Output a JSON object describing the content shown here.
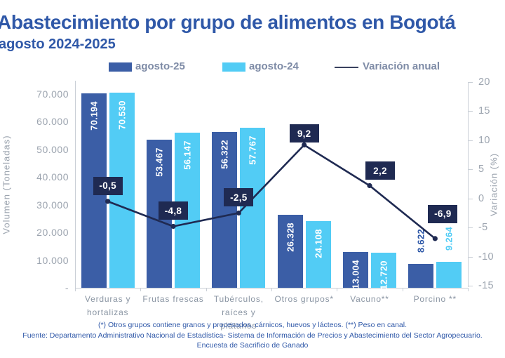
{
  "title": "Abastecimiento por grupo de alimentos en Bogotá",
  "subtitle": "agosto 2024-2025",
  "footnotes": {
    "line1": "(*) Otros grupos contiene granos y procesados, cárnicos, huevos y lácteos. (**) Peso en canal.",
    "line2": "Fuente: Departamento Administrativo Nacional de Estadística- Sistema de Información de Precios y Abastecimiento del Sector Agropecuario.",
    "line3": "Encuesta de  Sacrificio de Ganado"
  },
  "colors": {
    "title_blue": "#2F58A8",
    "bar_dark_blue": "#3B5EA6",
    "bar_light_blue": "#52CCF5",
    "navy": "#1F2A52",
    "axis_text_gray": "#9CA4AF",
    "category_text_gray": "#8A95A3",
    "legend_text": "#7E8BA6",
    "axis_line_gray": "#C9CFD6"
  },
  "chart_data": {
    "type": "bar",
    "title": "Abastecimiento por grupo de alimentos en Bogotá agosto 2024-2025",
    "categories": [
      "Verduras y\nhortalizas",
      "Frutas frescas",
      "Tubérculos,\nraíces y plátanos",
      "Otros grupos*",
      "Vacuno**",
      "Porcino **"
    ],
    "series": [
      {
        "name": "agosto-25",
        "color": "#3B5EA6",
        "label_color": "#2E58A8",
        "values": [
          70194,
          53467,
          56322,
          26328,
          13004,
          8622
        ],
        "value_labels": [
          "70.194",
          "53.467",
          "56.322",
          "26.328",
          "13.004",
          "8.622"
        ]
      },
      {
        "name": "agosto-24",
        "color": "#52CCF5",
        "label_color": "#52CCF5",
        "values": [
          70530,
          56147,
          57767,
          24108,
          12720,
          9264
        ],
        "value_labels": [
          "70.530",
          "56.147",
          "57.767",
          "24.108",
          "12.720",
          "9.264"
        ]
      }
    ],
    "line_series": {
      "name": "Variación anual",
      "color": "#1F2A52",
      "values": [
        -0.5,
        -4.8,
        -2.5,
        9.2,
        2.2,
        -6.9
      ],
      "value_labels": [
        "-0,5",
        "-4,8",
        "-2,5",
        "9,2",
        "2,2",
        "-6,9"
      ]
    },
    "y_axis": {
      "title": "Volumen (Toneladas)",
      "min": 0,
      "max": 70000,
      "tick_labels": [
        "70.000",
        "60.000",
        "50.000",
        "40.000",
        "30.000",
        "20.000",
        "10.000",
        "-"
      ],
      "tick_values": [
        70000,
        60000,
        50000,
        40000,
        30000,
        20000,
        10000,
        0
      ]
    },
    "y2_axis": {
      "title": "Variación (%)",
      "min": -15,
      "max": 20,
      "tick_labels": [
        "20",
        "15",
        "10",
        "5",
        "0",
        "-5",
        "-10",
        "-15"
      ],
      "tick_values": [
        20,
        15,
        10,
        5,
        0,
        -5,
        -10,
        -15
      ]
    },
    "grid": false,
    "legend_position": "top"
  }
}
